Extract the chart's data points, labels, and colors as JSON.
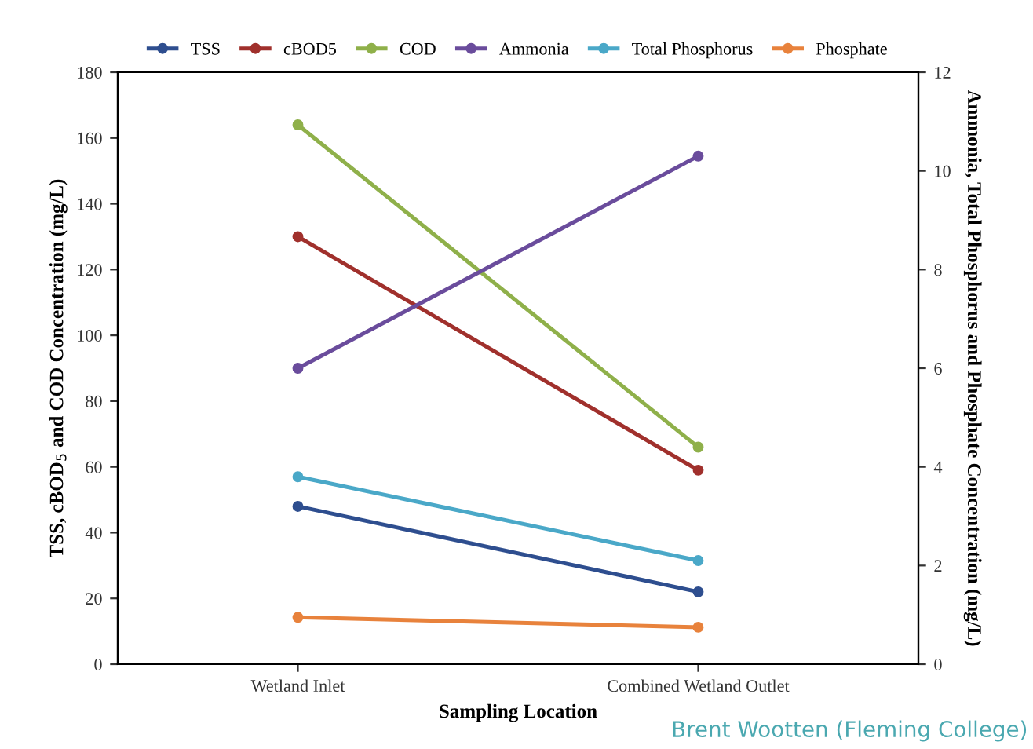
{
  "chart_data": {
    "type": "line",
    "categories": [
      "Wetland Inlet",
      "Combined Wetland Outlet"
    ],
    "xlabel": "Sampling Location",
    "ylabel": "TSS, cBOD$_{5}$ and COD Concentration (mg/L)",
    "y2label": "Ammonia, Total Phosphorus and Phosphate Concentration (mg/L)",
    "ylim": [
      0,
      180
    ],
    "yticks": [
      0,
      20,
      40,
      60,
      80,
      100,
      120,
      140,
      160,
      180
    ],
    "y2lim": [
      0,
      12
    ],
    "y2ticks": [
      0,
      2,
      4,
      6,
      8,
      10,
      12
    ],
    "grid": false,
    "legend": "top",
    "marker": "circle",
    "line_style": "solid",
    "annotations": [
      "Brent Wootten (Fleming College)"
    ],
    "series": [
      {
        "name": "TSS",
        "color": "#2e4e8f",
        "values": [
          48,
          22
        ]
      },
      {
        "name": "cBOD5",
        "color": "#a0302c",
        "values": [
          130,
          59
        ]
      },
      {
        "name": "COD",
        "color": "#8fb04a",
        "values": [
          164,
          66
        ]
      },
      {
        "name": "Ammonia",
        "color": "#6a4c9c",
        "values": [
          6.0,
          10.3
        ],
        "axis": "y2"
      },
      {
        "name": "Total Phosphorus",
        "color": "#4aa8c8",
        "values": [
          3.8,
          2.1
        ],
        "axis": "y2"
      },
      {
        "name": "Phosphate",
        "color": "#e8823c",
        "values": [
          0.95,
          0.75
        ],
        "axis": "y2"
      }
    ]
  }
}
